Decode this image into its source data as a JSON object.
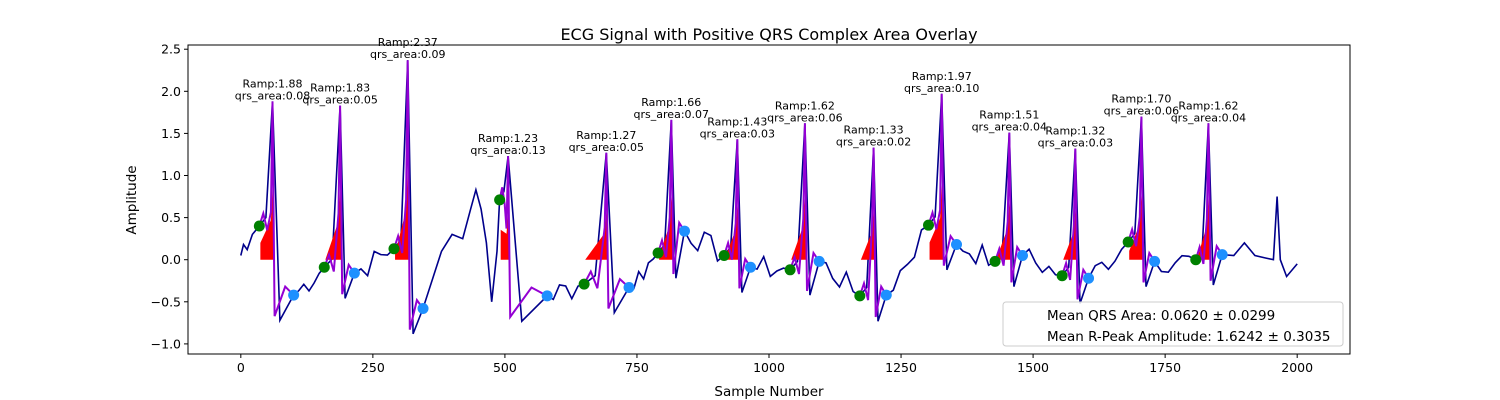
{
  "chart_data": {
    "type": "line",
    "title": "ECG Signal with Positive QRS Complex Area Overlay",
    "xlabel": "Sample Number",
    "ylabel": "Amplitude",
    "xlim": [
      -100,
      2100
    ],
    "ylim": [
      -1.12,
      2.55
    ],
    "xticks": [
      0,
      250,
      500,
      750,
      1000,
      1250,
      1500,
      1750,
      2000
    ],
    "yticks": [
      -1.0,
      -0.5,
      0.0,
      0.5,
      1.0,
      1.5,
      2.0,
      2.5
    ],
    "xtick_labels": [
      "0",
      "250",
      "500",
      "750",
      "1000",
      "1250",
      "1500",
      "1750",
      "2000"
    ],
    "ytick_labels": [
      "−1.0",
      "−0.5",
      "0.0",
      "0.5",
      "1.0",
      "1.5",
      "2.0",
      "2.5"
    ],
    "colors": {
      "signal": "#00008b",
      "qrs_segment": "#9400d3",
      "qrs_area": "#ff0000",
      "onset_marker": "#008000",
      "offset_marker": "#1e90ff"
    },
    "beats": [
      {
        "onset": [
          35,
          0.4
        ],
        "peak": [
          60,
          1.88
        ],
        "offset": [
          100,
          -0.42
        ],
        "ramp_label": "Ramp:1.88",
        "area_label": "qrs_area:0.08"
      },
      {
        "onset": [
          158,
          -0.09
        ],
        "peak": [
          188,
          1.83
        ],
        "offset": [
          215,
          -0.16
        ],
        "ramp_label": "Ramp:1.83",
        "area_label": "qrs_area:0.05"
      },
      {
        "onset": [
          290,
          0.13
        ],
        "peak": [
          316,
          2.37
        ],
        "offset": [
          345,
          -0.58
        ],
        "ramp_label": "Ramp:2.37",
        "area_label": "qrs_area:0.09"
      },
      {
        "onset": [
          490,
          0.71
        ],
        "peak": [
          506,
          1.23
        ],
        "offset": [
          580,
          -0.43
        ],
        "ramp_label": "Ramp:1.23",
        "area_label": "qrs_area:0.13"
      },
      {
        "onset": [
          650,
          -0.29
        ],
        "peak": [
          692,
          1.27
        ],
        "offset": [
          735,
          -0.33
        ],
        "ramp_label": "Ramp:1.27",
        "area_label": "qrs_area:0.05"
      },
      {
        "onset": [
          790,
          0.08
        ],
        "peak": [
          815,
          1.66
        ],
        "offset": [
          840,
          0.34
        ],
        "ramp_label": "Ramp:1.66",
        "area_label": "qrs_area:0.07"
      },
      {
        "onset": [
          915,
          0.05
        ],
        "peak": [
          940,
          1.43
        ],
        "offset": [
          965,
          -0.09
        ],
        "ramp_label": "Ramp:1.43",
        "area_label": "qrs_area:0.03"
      },
      {
        "onset": [
          1040,
          -0.12
        ],
        "peak": [
          1068,
          1.62
        ],
        "offset": [
          1095,
          -0.02
        ],
        "ramp_label": "Ramp:1.62",
        "area_label": "qrs_area:0.06"
      },
      {
        "onset": [
          1172,
          -0.43
        ],
        "peak": [
          1198,
          1.33
        ],
        "offset": [
          1222,
          -0.42
        ],
        "ramp_label": "Ramp:1.33",
        "area_label": "qrs_area:0.02"
      },
      {
        "onset": [
          1302,
          0.41
        ],
        "peak": [
          1327,
          1.97
        ],
        "offset": [
          1355,
          0.18
        ],
        "ramp_label": "Ramp:1.97",
        "area_label": "qrs_area:0.10"
      },
      {
        "onset": [
          1428,
          -0.02
        ],
        "peak": [
          1455,
          1.51
        ],
        "offset": [
          1480,
          0.05
        ],
        "ramp_label": "Ramp:1.51",
        "area_label": "qrs_area:0.04"
      },
      {
        "onset": [
          1555,
          -0.19
        ],
        "peak": [
          1580,
          1.32
        ],
        "offset": [
          1605,
          -0.22
        ],
        "ramp_label": "Ramp:1.32",
        "area_label": "qrs_area:0.03"
      },
      {
        "onset": [
          1680,
          0.21
        ],
        "peak": [
          1705,
          1.7
        ],
        "offset": [
          1730,
          -0.02
        ],
        "ramp_label": "Ramp:1.70",
        "area_label": "qrs_area:0.06"
      },
      {
        "onset": [
          1808,
          0.0
        ],
        "peak": [
          1832,
          1.62
        ],
        "offset": [
          1858,
          0.06
        ],
        "ramp_label": "Ramp:1.62",
        "area_label": "qrs_area:0.04"
      }
    ],
    "extra_signal_points": [
      {
        "after_beat": 2,
        "points": [
          [
            380,
            0.1
          ],
          [
            400,
            0.3
          ],
          [
            420,
            0.25
          ],
          [
            435,
            0.6
          ],
          [
            445,
            0.83
          ],
          [
            455,
            0.6
          ],
          [
            465,
            0.2
          ],
          [
            475,
            -0.5
          ],
          [
            485,
            0.1
          ]
        ]
      },
      {
        "after_beat": 13,
        "points": [
          [
            1880,
            0.05
          ],
          [
            1900,
            0.2
          ],
          [
            1920,
            0.05
          ],
          [
            1940,
            0.02
          ],
          [
            1955,
            0.0
          ],
          [
            1962,
            0.75
          ],
          [
            1968,
            0.0
          ],
          [
            1980,
            -0.2
          ],
          [
            2000,
            -0.05
          ]
        ]
      }
    ],
    "legend": {
      "placement": "lower-right",
      "entries": [
        "Mean QRS Area: 0.0620 ± 0.0299",
        "Mean R-Peak Amplitude: 1.6242 ± 0.3035"
      ]
    }
  }
}
